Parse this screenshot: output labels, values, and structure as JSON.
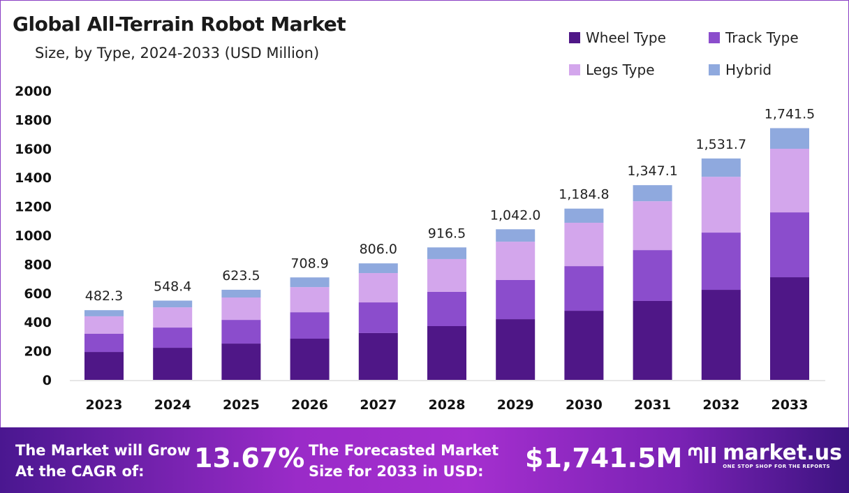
{
  "chart_data": {
    "type": "bar",
    "stacked": true,
    "title": "Global All-Terrain Robot Market",
    "subtitle": "Size, by Type, 2024-2033 (USD Million)",
    "xlabel": "",
    "ylabel": "",
    "ylim": [
      0,
      2000
    ],
    "yticks": [
      "0",
      "200",
      "400",
      "600",
      "800",
      "1000",
      "1200",
      "1400",
      "1600",
      "1800",
      "2000"
    ],
    "legend_position": "top-right",
    "categories": [
      "2023",
      "2024",
      "2025",
      "2026",
      "2027",
      "2028",
      "2029",
      "2030",
      "2031",
      "2032",
      "2033"
    ],
    "series": [
      {
        "name": "Wheel Type",
        "color": "#4f1787",
        "values": [
          193,
          222,
          251,
          285,
          324,
          372,
          420,
          478,
          546,
          623,
          710
        ]
      },
      {
        "name": "Track Type",
        "color": "#8b4dcc",
        "values": [
          126,
          140,
          164,
          183,
          212,
          237,
          271,
          309,
          352,
          396,
          449
        ]
      },
      {
        "name": "Legs Type",
        "color": "#d3a6ec",
        "values": [
          121,
          140,
          155,
          174,
          203,
          227,
          265,
          300,
          338,
          386,
          440
        ]
      },
      {
        "name": "Hybrid",
        "color": "#8fa9de",
        "values": [
          42.3,
          46.4,
          53.5,
          66.9,
          67,
          80.5,
          86,
          97.8,
          111.1,
          126.7,
          142.5
        ]
      }
    ],
    "totals": [
      "482.3",
      "548.4",
      "623.5",
      "708.9",
      "806.0",
      "916.5",
      "1,042.0",
      "1,184.8",
      "1,347.1",
      "1,531.7",
      "1,741.5"
    ],
    "total_values": [
      482.3,
      548.4,
      623.5,
      708.9,
      806.0,
      916.5,
      1042.0,
      1184.8,
      1347.1,
      1531.7,
      1741.5
    ]
  },
  "banner": {
    "cagr_label_1": "The Market will Grow",
    "cagr_label_2": "At the CAGR of:",
    "cagr_value": "13.67%",
    "forecast_label_1": "The Forecasted Market",
    "forecast_label_2": "Size for 2033 in USD:",
    "forecast_value": "$1,741.5M",
    "logo_name": "market.us",
    "logo_tagline": "ONE STOP SHOP FOR THE REPORTS"
  }
}
